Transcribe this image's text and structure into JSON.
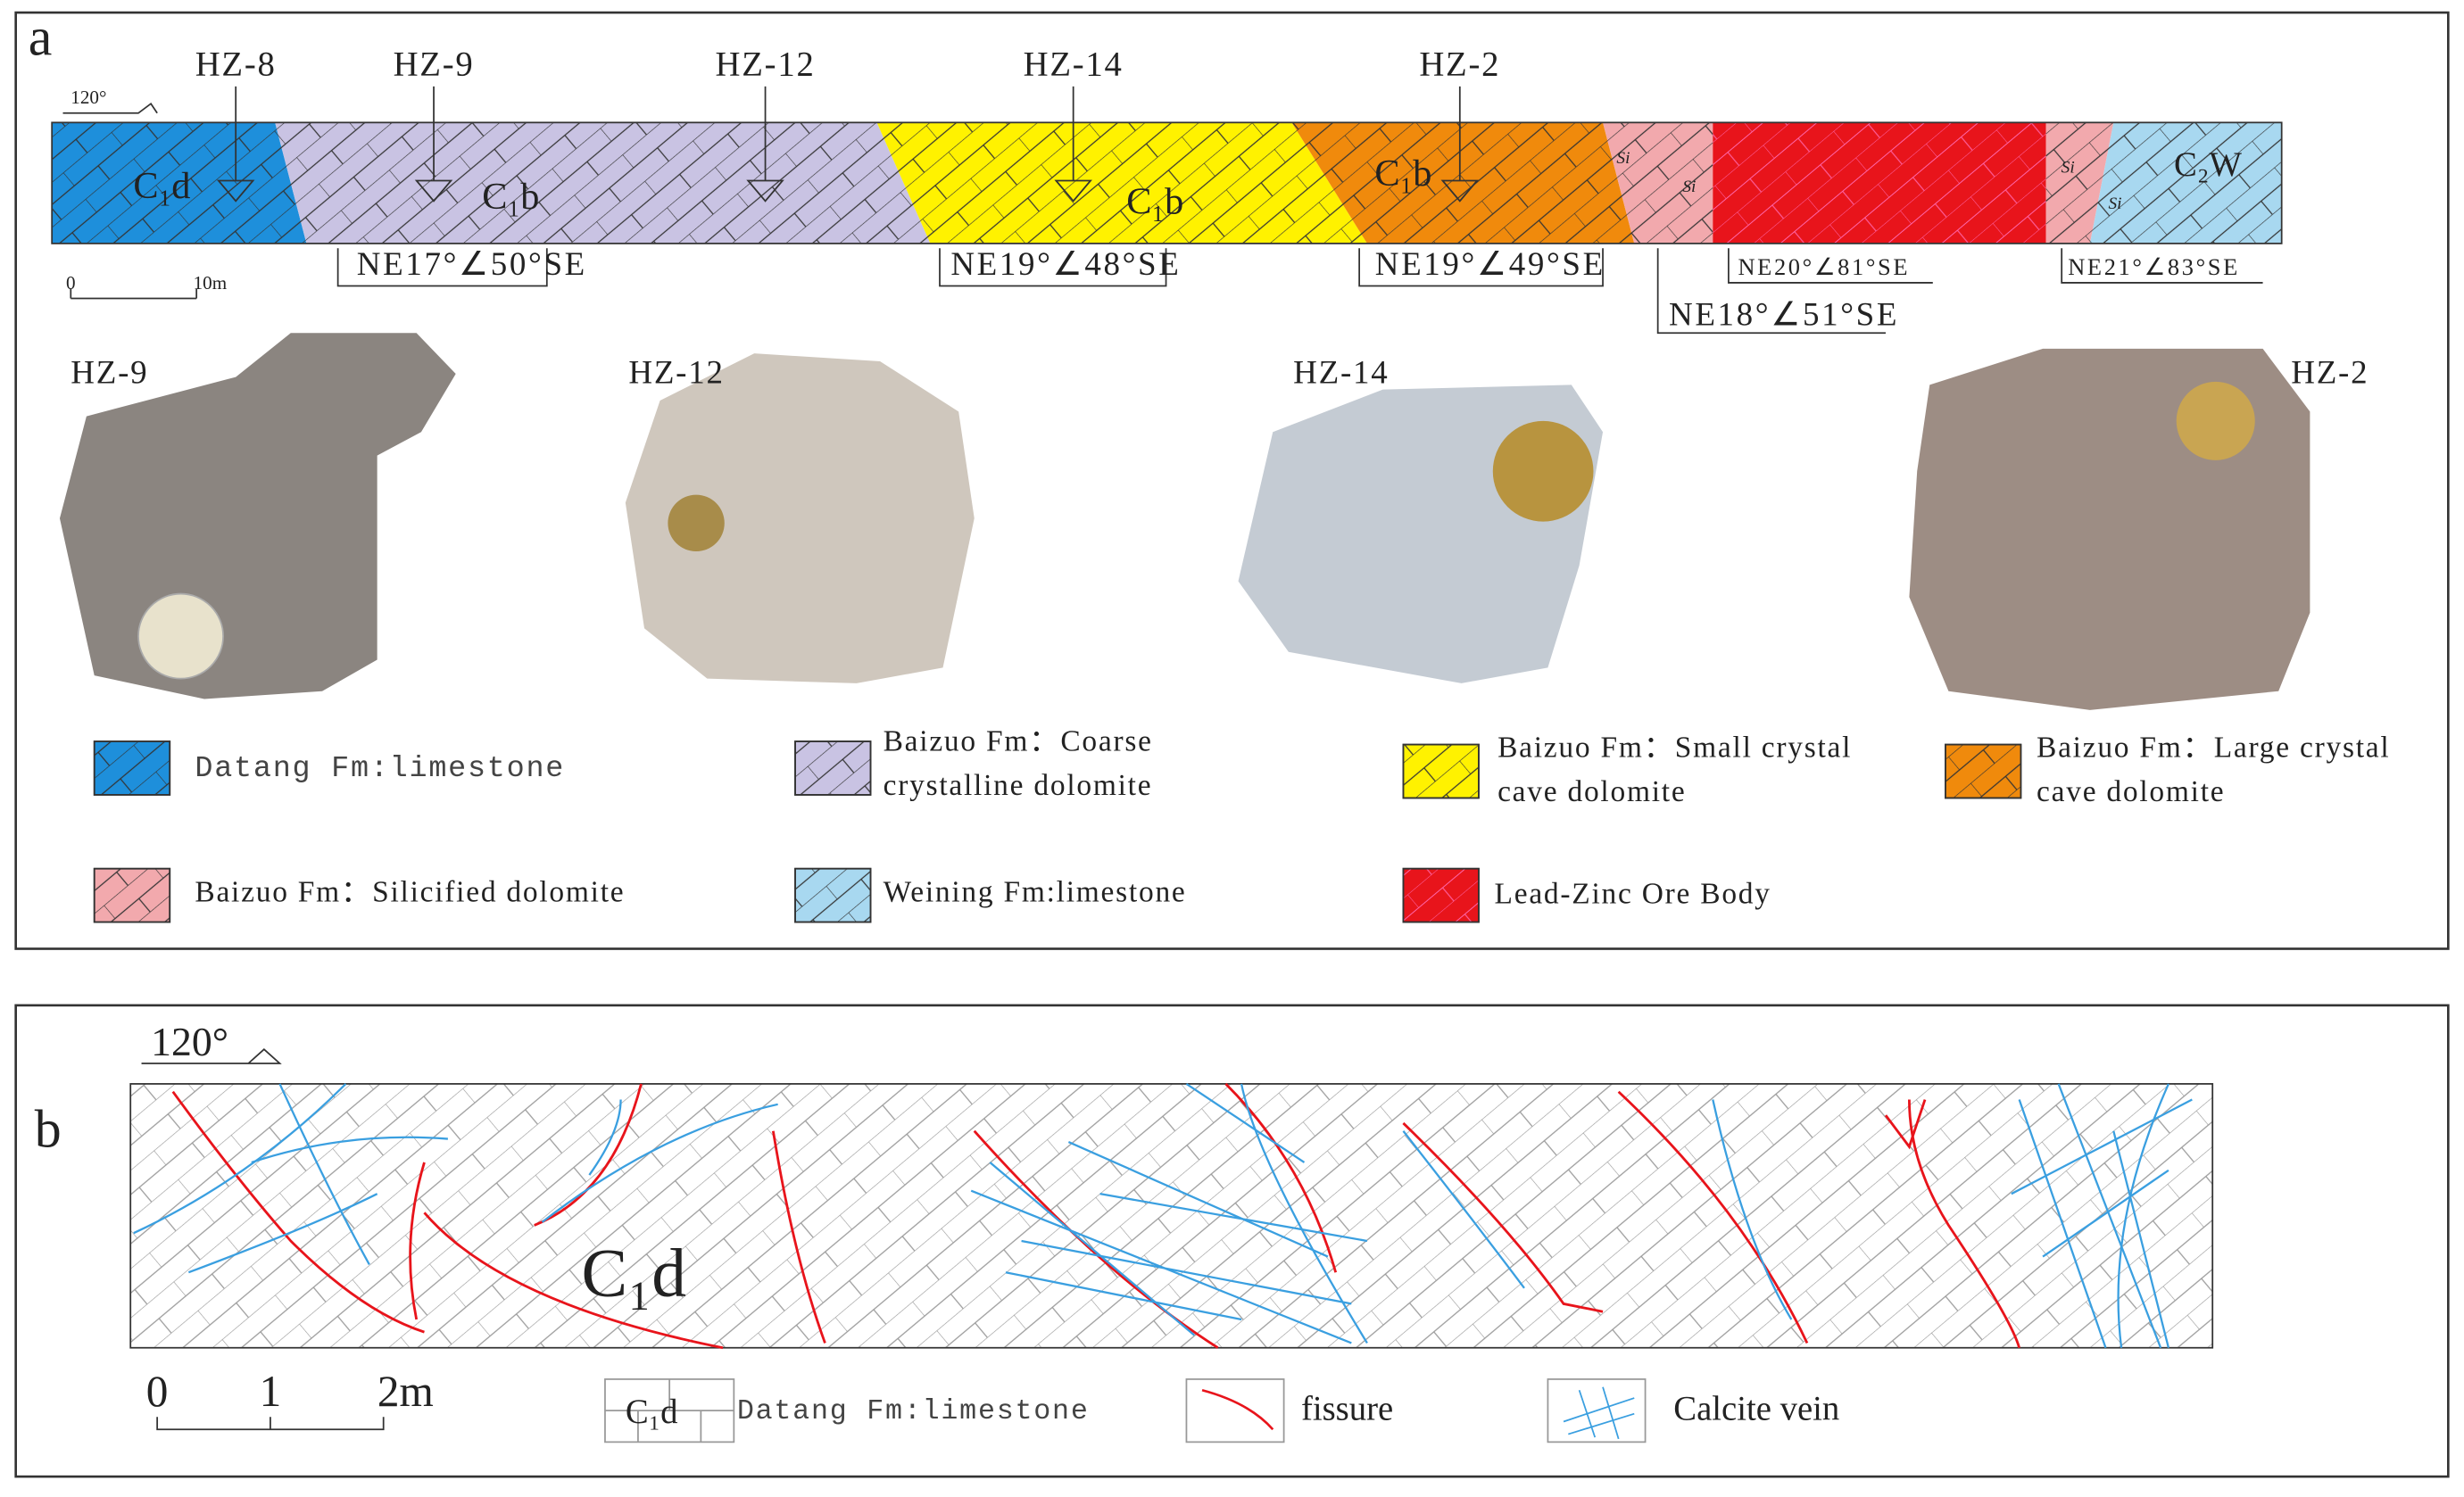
{
  "panel_a": {
    "label": "a",
    "orientation": "120°",
    "samples": [
      "HZ-8",
      "HZ-9",
      "HZ-12",
      "HZ-14",
      "HZ-2"
    ],
    "units": [
      "C₁d",
      "C₁b",
      "C₁b",
      "C₁b",
      "Si",
      "Si",
      "Si",
      "Si",
      "C₂W"
    ],
    "attitudes": [
      "NE17°∠50°SE",
      "NE19°∠48°SE",
      "NE19°∠49°SE",
      "NE18°∠51°SE",
      "NE20°∠81°SE",
      "NE21°∠83°SE"
    ],
    "scale": [
      "0",
      "10m"
    ],
    "photos": [
      "HZ-9",
      "HZ-12",
      "HZ-14",
      "HZ-2"
    ],
    "legend": [
      {
        "lines": [
          "Datang Fm:limestone"
        ]
      },
      {
        "lines": [
          "Baizuo Fm：Coarse",
          "crystalline dolomite"
        ]
      },
      {
        "lines": [
          "Baizuo Fm：Small crystal",
          "cave dolomite"
        ]
      },
      {
        "lines": [
          "Baizuo Fm：Large crystal",
          "cave dolomite"
        ]
      },
      {
        "lines": [
          "Baizuo Fm：Silicified dolomite"
        ]
      },
      {
        "lines": [
          "Weining Fm:limestone"
        ]
      },
      {
        "lines": [
          "Lead-Zinc Ore Body"
        ]
      }
    ]
  },
  "panel_b": {
    "label": "b",
    "orientation": "120°",
    "unit": "C₁d",
    "scale": [
      "0",
      "1",
      "2m"
    ],
    "legend": [
      {
        "symbol": "C₁d",
        "text": "Datang Fm:limestone"
      },
      {
        "text": "fissure"
      },
      {
        "text": "Calcite vein"
      }
    ]
  }
}
